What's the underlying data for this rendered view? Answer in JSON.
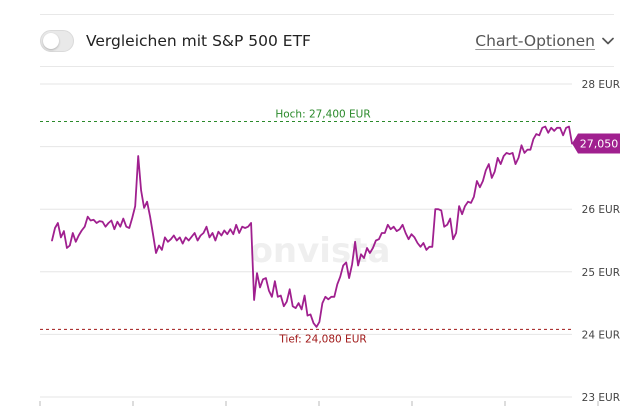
{
  "toolbar": {
    "compare_label": "Vergleichen mit S&P 500 ETF",
    "compare_enabled": false,
    "chart_options_label": "Chart-Optionen",
    "chevron_icon": "chevron-down-icon"
  },
  "colors": {
    "line": "#a0208f",
    "high": "#2b8a2b",
    "low": "#a01818",
    "grid": "#e6e6e6",
    "axis_text": "#444444",
    "watermark": "#efefef"
  },
  "watermark": "onvista",
  "chart_data": {
    "type": "line",
    "y_unit": "EUR",
    "ylim": [
      23,
      28
    ],
    "yticks": [
      {
        "value": 28,
        "label": "28 EUR"
      },
      {
        "value": 26,
        "label": "26 EUR"
      },
      {
        "value": 25,
        "label": "25 EUR"
      },
      {
        "value": 24,
        "label": "24 EUR"
      },
      {
        "value": 23,
        "label": "23 EUR"
      }
    ],
    "high": {
      "value": 27.4,
      "label": "Hoch: 27,400 EUR"
    },
    "low": {
      "value": 24.08,
      "label": "Tief: 24,080 EUR"
    },
    "last": {
      "value": 27.05,
      "label": "27,050"
    },
    "x_tick_count": 7,
    "x_tick_labels_visible": false,
    "series": [
      {
        "values": [
          25.5,
          25.7,
          25.78,
          25.55,
          25.65,
          25.38,
          25.42,
          25.62,
          25.48,
          25.58,
          25.66,
          25.72,
          25.88,
          25.82,
          25.83,
          25.78,
          25.81,
          25.8,
          25.72,
          25.78,
          25.82,
          25.68,
          25.8,
          25.72,
          25.85,
          25.72,
          25.7,
          25.86,
          26.05,
          26.85,
          26.3,
          26.02,
          26.12,
          25.88,
          25.6,
          25.3,
          25.42,
          25.35,
          25.55,
          25.48,
          25.52,
          25.58,
          25.5,
          25.55,
          25.45,
          25.55,
          25.5,
          25.56,
          25.62,
          25.5,
          25.58,
          25.62,
          25.72,
          25.55,
          25.62,
          25.5,
          25.64,
          25.58,
          25.66,
          25.6,
          25.68,
          25.6,
          25.75,
          25.62,
          25.72,
          25.7,
          25.72,
          25.78,
          24.55,
          24.98,
          24.75,
          24.88,
          24.9,
          24.7,
          24.6,
          24.85,
          24.6,
          24.62,
          24.45,
          24.52,
          24.72,
          24.45,
          24.42,
          24.5,
          24.4,
          24.62,
          24.3,
          24.32,
          24.18,
          24.12,
          24.2,
          24.5,
          24.6,
          24.56,
          24.6,
          24.6,
          24.8,
          24.92,
          25.1,
          25.15,
          24.9,
          25.12,
          25.48,
          25.1,
          25.28,
          25.22,
          25.38,
          25.3,
          25.38,
          25.5,
          25.52,
          25.62,
          25.62,
          25.75,
          25.68,
          25.72,
          25.65,
          25.68,
          25.75,
          25.62,
          25.52,
          25.6,
          25.55,
          25.46,
          25.4,
          25.46,
          25.35,
          25.4,
          25.4,
          26.0,
          26.0,
          25.98,
          25.72,
          25.75,
          25.85,
          25.52,
          25.62,
          26.05,
          25.92,
          26.05,
          26.12,
          26.1,
          26.2,
          26.45,
          26.35,
          26.45,
          26.62,
          26.72,
          26.5,
          26.6,
          26.82,
          26.72,
          26.85,
          26.9,
          26.88,
          26.9,
          26.72,
          26.82,
          27.02,
          26.9,
          26.95,
          26.95,
          27.12,
          27.2,
          27.18,
          27.3,
          27.32,
          27.22,
          27.3,
          27.25,
          27.3,
          27.3,
          27.18,
          27.3,
          27.32,
          27.05
        ]
      }
    ]
  }
}
